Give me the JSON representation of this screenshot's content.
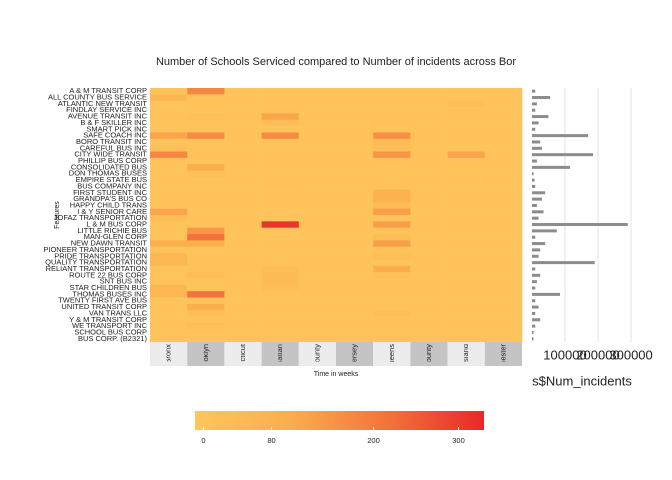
{
  "chart_data": {
    "type": "heatmap",
    "title": "Number of Schools Serviced compared to Number of incidents across Bor",
    "x_label": "Time in weeks",
    "y_label": "Features",
    "categories": [
      "Bronx",
      "Brooklyn",
      "Connecticut",
      "Manhattan",
      "Nassau County",
      "New Jersey",
      "Queens",
      "Rockland County",
      "Staten Island",
      "Westchester"
    ],
    "rows": [
      "A & M TRANSIT CORP",
      "ALL COUNTY BUS SERVICE",
      "ATLANTIC NEW TRANSIT",
      "FINDLAY SERVICE INC",
      "AVENUE TRANSIT INC",
      "B & F SKILLER INC",
      "SMART PICK INC",
      "SAFE COACH INC",
      "BORO TRANSIT INC",
      "CAREFUL BUS INC",
      "CITY WIDE TRANSIT",
      "PHILLIP BUS CORP",
      "CONSOLIDATED BUS",
      "DON THOMAS BUSES",
      "EMPIRE STATE BUS",
      "BUS COMPANY INC",
      "FIRST STUDENT INC",
      "GRANDPA'S BUS CO",
      "HAPPY CHILD TRANS",
      "I & Y SENIOR CARE",
      "JOFAZ TRANSPORTATION",
      "L & M BUS CORP",
      "LITTLE RICHIE BUS",
      "MAN-GLEN CORP",
      "NEW DAWN TRANSIT",
      "PIONEER TRANSPORTATION",
      "PRIDE TRANSPORTATION",
      "QUALITY TRANSPORTATION",
      "RELIANT TRANSPORTATION",
      "ROUTE 22 BUS CORP",
      "SNT BUS INC",
      "STAR CHILDREN BUS",
      "THOMAS BUSES INC",
      "TWENTY FIRST AVE BUS",
      "UNITED TRANSIT CORP",
      "VAN TRANS LLC",
      "Y & M TRANSIT CORP",
      "WE TRANSPORT INC",
      "SCHOOL BUS CORP",
      "BUS CORP. (B2321)"
    ],
    "z": [
      [
        0,
        180,
        0,
        0,
        0,
        0,
        0,
        0,
        0,
        0
      ],
      [
        60,
        0,
        0,
        0,
        0,
        0,
        0,
        0,
        0,
        0
      ],
      [
        0,
        10,
        0,
        0,
        0,
        0,
        0,
        0,
        20,
        0
      ],
      [
        0,
        0,
        0,
        10,
        0,
        0,
        0,
        0,
        0,
        0
      ],
      [
        0,
        20,
        0,
        120,
        0,
        0,
        0,
        0,
        0,
        0
      ],
      [
        0,
        0,
        0,
        30,
        0,
        0,
        10,
        0,
        0,
        0
      ],
      [
        0,
        0,
        0,
        0,
        0,
        0,
        0,
        0,
        0,
        0
      ],
      [
        120,
        170,
        0,
        170,
        0,
        0,
        160,
        0,
        0,
        0
      ],
      [
        0,
        0,
        0,
        0,
        0,
        0,
        40,
        0,
        0,
        0
      ],
      [
        20,
        0,
        0,
        0,
        0,
        0,
        30,
        0,
        0,
        0
      ],
      [
        180,
        0,
        0,
        0,
        0,
        0,
        150,
        0,
        120,
        0
      ],
      [
        0,
        0,
        0,
        0,
        0,
        0,
        10,
        0,
        0,
        0
      ],
      [
        0,
        100,
        0,
        0,
        0,
        0,
        0,
        0,
        0,
        0
      ],
      [
        0,
        20,
        0,
        0,
        0,
        0,
        0,
        0,
        0,
        0
      ],
      [
        0,
        0,
        0,
        0,
        0,
        0,
        0,
        0,
        0,
        10
      ],
      [
        0,
        0,
        0,
        10,
        0,
        0,
        0,
        0,
        0,
        0
      ],
      [
        0,
        0,
        0,
        0,
        0,
        0,
        80,
        0,
        0,
        0
      ],
      [
        0,
        0,
        0,
        0,
        0,
        0,
        80,
        0,
        0,
        0
      ],
      [
        0,
        0,
        0,
        0,
        0,
        0,
        40,
        0,
        0,
        0
      ],
      [
        120,
        0,
        0,
        0,
        0,
        0,
        130,
        0,
        0,
        0
      ],
      [
        30,
        0,
        0,
        0,
        0,
        0,
        0,
        0,
        0,
        0
      ],
      [
        0,
        0,
        0,
        310,
        0,
        0,
        130,
        0,
        0,
        0
      ],
      [
        0,
        150,
        0,
        0,
        0,
        0,
        0,
        0,
        0,
        0
      ],
      [
        0,
        220,
        0,
        0,
        0,
        0,
        30,
        0,
        0,
        0
      ],
      [
        100,
        100,
        0,
        0,
        0,
        0,
        130,
        0,
        0,
        0
      ],
      [
        0,
        0,
        0,
        0,
        0,
        0,
        0,
        0,
        0,
        0
      ],
      [
        60,
        0,
        0,
        0,
        0,
        0,
        30,
        0,
        0,
        0
      ],
      [
        60,
        0,
        0,
        0,
        0,
        0,
        0,
        0,
        0,
        0
      ],
      [
        0,
        0,
        0,
        30,
        0,
        0,
        100,
        0,
        0,
        0
      ],
      [
        0,
        30,
        0,
        40,
        0,
        0,
        20,
        0,
        0,
        0
      ],
      [
        0,
        0,
        0,
        40,
        0,
        0,
        0,
        0,
        0,
        0
      ],
      [
        60,
        0,
        0,
        30,
        0,
        0,
        0,
        0,
        0,
        0
      ],
      [
        60,
        220,
        0,
        0,
        0,
        0,
        0,
        0,
        0,
        0
      ],
      [
        0,
        0,
        0,
        0,
        0,
        0,
        0,
        0,
        0,
        0
      ],
      [
        0,
        100,
        0,
        0,
        0,
        0,
        0,
        0,
        0,
        0
      ],
      [
        0,
        20,
        0,
        0,
        0,
        0,
        20,
        0,
        0,
        0
      ],
      [
        0,
        0,
        0,
        0,
        0,
        0,
        0,
        0,
        0,
        0
      ],
      [
        0,
        30,
        0,
        0,
        0,
        0,
        0,
        0,
        0,
        0
      ],
      [
        0,
        0,
        0,
        0,
        0,
        0,
        0,
        0,
        0,
        0
      ],
      [
        0,
        0,
        0,
        0,
        0,
        0,
        0,
        0,
        0,
        0
      ]
    ],
    "zlim": [
      -10,
      330
    ],
    "zticks": [
      0,
      80,
      200,
      300
    ],
    "colorscale": [
      "#fec65c",
      "#fbad4e",
      "#f3733a",
      "#e8282a"
    ],
    "bar_panel": {
      "type": "bar",
      "x_label": "s$Num_incidents",
      "values": [
        10000,
        55000,
        15000,
        10000,
        50000,
        20000,
        10000,
        170000,
        25000,
        30000,
        185000,
        15000,
        115000,
        5000,
        8000,
        10000,
        40000,
        30000,
        15000,
        35000,
        20000,
        290000,
        75000,
        10000,
        40000,
        25000,
        20000,
        190000,
        10000,
        25000,
        15000,
        10000,
        85000,
        10000,
        20000,
        10000,
        25000,
        10000,
        5000,
        5000
      ],
      "xlim": [
        -15000,
        327000
      ],
      "xticks": [
        100000,
        200000,
        300000
      ],
      "color": "#8c8c8c"
    }
  }
}
